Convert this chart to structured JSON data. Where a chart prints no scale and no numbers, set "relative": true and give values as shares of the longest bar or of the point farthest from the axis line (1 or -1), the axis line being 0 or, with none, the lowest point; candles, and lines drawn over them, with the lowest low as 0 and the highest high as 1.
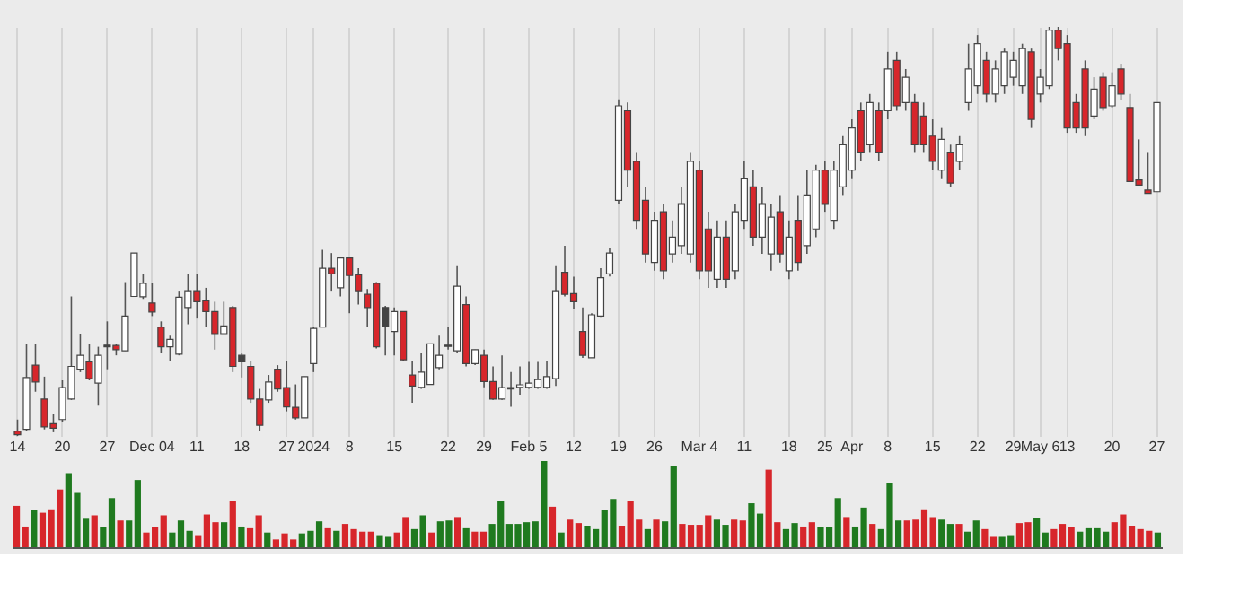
{
  "chart_data": [
    {
      "type": "candlestick",
      "relative": true,
      "grid": "x",
      "categories": [
        "14",
        null,
        null,
        null,
        null,
        "20",
        null,
        null,
        null,
        null,
        "27",
        null,
        null,
        null,
        null,
        "Dec 04",
        null,
        null,
        null,
        null,
        "11",
        null,
        null,
        null,
        null,
        "18",
        null,
        null,
        null,
        null,
        "27",
        null,
        null,
        "2024",
        null,
        null,
        null,
        "8",
        null,
        null,
        null,
        null,
        "15",
        null,
        null,
        null,
        null,
        null,
        "22",
        null,
        null,
        null,
        "29",
        null,
        null,
        null,
        null,
        "Feb 5",
        null,
        null,
        null,
        null,
        "12",
        null,
        null,
        null,
        null,
        "19",
        null,
        null,
        null,
        "26",
        null,
        null,
        null,
        null,
        "Mar 4",
        null,
        null,
        null,
        null,
        "11",
        null,
        null,
        null,
        null,
        "18",
        null,
        null,
        null,
        "25",
        null,
        null,
        "Apr",
        null,
        null,
        null,
        "8",
        null,
        null,
        null,
        null,
        "15",
        null,
        null,
        null,
        null,
        "22",
        null,
        null,
        null,
        "29",
        null,
        null,
        "May 6",
        null,
        null,
        "13",
        null,
        null,
        null,
        null,
        "20",
        null,
        null,
        null,
        null,
        "27"
      ],
      "ohlc": [
        [
          0.012,
          0.04,
          0,
          0.003
        ],
        [
          0.016,
          0.225,
          0.012,
          0.143
        ],
        [
          0.173,
          0.225,
          0.108,
          0.132
        ],
        [
          0.09,
          0.145,
          0.016,
          0.022
        ],
        [
          0.03,
          0.053,
          0.009,
          0.019
        ],
        [
          0.04,
          0.136,
          0.033,
          0.118
        ],
        [
          0.09,
          0.341,
          0.088,
          0.17
        ],
        [
          0.163,
          0.25,
          0.156,
          0.197
        ],
        [
          0.181,
          0.225,
          0.136,
          0.14
        ],
        [
          0.129,
          0.218,
          0.074,
          0.197
        ],
        [
          0.218,
          0.28,
          0.163,
          0.222
        ],
        [
          0.221,
          0.225,
          0.197,
          0.211
        ],
        [
          0.208,
          0.376,
          0.208,
          0.293
        ],
        [
          0.341,
          0.447,
          0.341,
          0.447
        ],
        [
          0.34,
          0.396,
          0.335,
          0.373
        ],
        [
          0.325,
          0.373,
          0.293,
          0.303
        ],
        [
          0.266,
          0.28,
          0.204,
          0.218
        ],
        [
          0.218,
          0.245,
          0.184,
          0.236
        ],
        [
          0.2,
          0.355,
          0.197,
          0.339
        ],
        [
          0.314,
          0.396,
          0.273,
          0.355
        ],
        [
          0.355,
          0.396,
          0.287,
          0.328
        ],
        [
          0.33,
          0.362,
          0.266,
          0.304
        ],
        [
          0.304,
          0.328,
          0.211,
          0.25
        ],
        [
          0.25,
          0.328,
          0.25,
          0.269
        ],
        [
          0.314,
          0.318,
          0.156,
          0.17
        ],
        [
          0.181,
          0.204,
          0.143,
          0.197
        ],
        [
          0.17,
          0.184,
          0.081,
          0.09
        ],
        [
          0.09,
          0.115,
          0.012,
          0.026
        ],
        [
          0.088,
          0.149,
          0.081,
          0.132
        ],
        [
          0.163,
          0.173,
          0.108,
          0.115
        ],
        [
          0.118,
          0.184,
          0.06,
          0.071
        ],
        [
          0.07,
          0.126,
          0.04,
          0.044
        ],
        [
          0.044,
          0.145,
          0.044,
          0.145
        ],
        [
          0.177,
          0.266,
          0.156,
          0.263
        ],
        [
          0.266,
          0.455,
          0.266,
          0.41
        ],
        [
          0.41,
          0.447,
          0.355,
          0.396
        ],
        [
          0.362,
          0.435,
          0.341,
          0.435
        ],
        [
          0.435,
          0.435,
          0.3,
          0.392
        ],
        [
          0.394,
          0.41,
          0.321,
          0.355
        ],
        [
          0.346,
          0.359,
          0.266,
          0.314
        ],
        [
          0.373,
          0.376,
          0.214,
          0.218
        ],
        [
          0.269,
          0.318,
          0.197,
          0.314
        ],
        [
          0.255,
          0.314,
          0.197,
          0.304
        ],
        [
          0.304,
          0.304,
          0.184,
          0.186
        ],
        [
          0.149,
          0.184,
          0.081,
          0.122
        ],
        [
          0.119,
          0.204,
          0.115,
          0.156
        ],
        [
          0.126,
          0.225,
          0.126,
          0.225
        ],
        [
          0.167,
          0.245,
          0.163,
          0.197
        ],
        [
          0.219,
          0.266,
          0.211,
          0.222
        ],
        [
          0.208,
          0.417,
          0.204,
          0.366
        ],
        [
          0.321,
          0.341,
          0.17,
          0.177
        ],
        [
          0.177,
          0.211,
          0.173,
          0.211
        ],
        [
          0.197,
          0.211,
          0.119,
          0.133
        ],
        [
          0.133,
          0.17,
          0.088,
          0.09
        ],
        [
          0.09,
          0.197,
          0.088,
          0.118
        ],
        [
          0.115,
          0.156,
          0.071,
          0.118
        ],
        [
          0.119,
          0.17,
          0.101,
          0.125
        ],
        [
          0.119,
          0.181,
          0.115,
          0.129
        ],
        [
          0.119,
          0.181,
          0.115,
          0.138
        ],
        [
          0.119,
          0.184,
          0.115,
          0.145
        ],
        [
          0.14,
          0.417,
          0.122,
          0.355
        ],
        [
          0.4,
          0.465,
          0.341,
          0.346
        ],
        [
          0.348,
          0.389,
          0.311,
          0.328
        ],
        [
          0.255,
          0.314,
          0.191,
          0.197
        ],
        [
          0.191,
          0.3,
          0.191,
          0.296
        ],
        [
          0.293,
          0.41,
          0.291,
          0.387
        ],
        [
          0.396,
          0.46,
          0.39,
          0.447
        ],
        [
          0.576,
          0.823,
          0.568,
          0.807
        ],
        [
          0.795,
          0.815,
          0.609,
          0.65
        ],
        [
          0.671,
          0.692,
          0.506,
          0.527
        ],
        [
          0.576,
          0.609,
          0.424,
          0.445
        ],
        [
          0.424,
          0.548,
          0.404,
          0.527
        ],
        [
          0.548,
          0.568,
          0.383,
          0.404
        ],
        [
          0.445,
          0.527,
          0.424,
          0.486
        ],
        [
          0.465,
          0.609,
          0.445,
          0.568
        ],
        [
          0.445,
          0.692,
          0.424,
          0.671
        ],
        [
          0.65,
          0.671,
          0.383,
          0.404
        ],
        [
          0.506,
          0.548,
          0.362,
          0.404
        ],
        [
          0.383,
          0.527,
          0.362,
          0.486
        ],
        [
          0.486,
          0.527,
          0.362,
          0.383
        ],
        [
          0.404,
          0.568,
          0.383,
          0.548
        ],
        [
          0.527,
          0.671,
          0.506,
          0.63
        ],
        [
          0.609,
          0.65,
          0.465,
          0.486
        ],
        [
          0.486,
          0.609,
          0.445,
          0.568
        ],
        [
          0.445,
          0.568,
          0.404,
          0.535
        ],
        [
          0.548,
          0.589,
          0.424,
          0.445
        ],
        [
          0.404,
          0.527,
          0.383,
          0.486
        ],
        [
          0.527,
          0.589,
          0.404,
          0.424
        ],
        [
          0.465,
          0.65,
          0.445,
          0.589
        ],
        [
          0.506,
          0.663,
          0.486,
          0.65
        ],
        [
          0.65,
          0.671,
          0.548,
          0.568
        ],
        [
          0.527,
          0.671,
          0.506,
          0.65
        ],
        [
          0.609,
          0.733,
          0.589,
          0.712
        ],
        [
          0.65,
          0.774,
          0.63,
          0.753
        ],
        [
          0.795,
          0.815,
          0.671,
          0.692
        ],
        [
          0.712,
          0.836,
          0.692,
          0.815
        ],
        [
          0.795,
          0.815,
          0.671,
          0.692
        ],
        [
          0.795,
          0.939,
          0.774,
          0.897
        ],
        [
          0.918,
          0.939,
          0.795,
          0.807
        ],
        [
          0.815,
          0.897,
          0.795,
          0.877
        ],
        [
          0.815,
          0.836,
          0.692,
          0.712
        ],
        [
          0.782,
          0.815,
          0.692,
          0.712
        ],
        [
          0.733,
          0.774,
          0.65,
          0.671
        ],
        [
          0.65,
          0.753,
          0.63,
          0.725
        ],
        [
          0.692,
          0.712,
          0.609,
          0.618
        ],
        [
          0.671,
          0.733,
          0.65,
          0.712
        ],
        [
          0.815,
          0.959,
          0.795,
          0.897
        ],
        [
          0.856,
          0.98,
          0.836,
          0.959
        ],
        [
          0.918,
          0.939,
          0.815,
          0.836
        ],
        [
          0.836,
          0.918,
          0.815,
          0.897
        ],
        [
          0.856,
          0.947,
          0.836,
          0.939
        ],
        [
          0.877,
          0.939,
          0.856,
          0.918
        ],
        [
          0.856,
          0.959,
          0.836,
          0.947
        ],
        [
          0.939,
          0.947,
          0.753,
          0.774
        ],
        [
          0.836,
          0.897,
          0.815,
          0.877
        ],
        [
          0.856,
          1,
          0.848,
          0.992
        ],
        [
          0.992,
          1,
          0.918,
          0.947
        ],
        [
          0.959,
          0.98,
          0.741,
          0.753
        ],
        [
          0.815,
          0.836,
          0.741,
          0.753
        ],
        [
          0.897,
          0.918,
          0.733,
          0.753
        ],
        [
          0.782,
          0.877,
          0.774,
          0.848
        ],
        [
          0.877,
          0.889,
          0.795,
          0.803
        ],
        [
          0.807,
          0.889,
          0.803,
          0.856
        ],
        [
          0.897,
          0.91,
          0.82,
          0.836
        ],
        [
          0.803,
          0.836,
          0.622,
          0.622
        ],
        [
          0.626,
          0.725,
          0.613,
          0.613
        ],
        [
          0.601,
          0.692,
          0.593,
          0.593
        ],
        [
          0.597,
          0.815,
          0.597,
          0.815
        ]
      ],
      "colors": [
        "#d7262b",
        "#ffffff",
        "#d7262b",
        "#d7262b",
        "#d7262b",
        "#ffffff",
        "#ffffff",
        "#ffffff",
        "#d7262b",
        "#ffffff",
        "#444444",
        "#d7262b",
        "#ffffff",
        "#ffffff",
        "#ffffff",
        "#d7262b",
        "#d7262b",
        "#ffffff",
        "#ffffff",
        "#ffffff",
        "#d7262b",
        "#d7262b",
        "#d7262b",
        "#ffffff",
        "#d7262b",
        "#444444",
        "#d7262b",
        "#d7262b",
        "#ffffff",
        "#d7262b",
        "#d7262b",
        "#d7262b",
        "#ffffff",
        "#ffffff",
        "#ffffff",
        "#d7262b",
        "#ffffff",
        "#d7262b",
        "#d7262b",
        "#d7262b",
        "#d7262b",
        "#444444",
        "#ffffff",
        "#d7262b",
        "#d7262b",
        "#ffffff",
        "#ffffff",
        "#ffffff",
        "#444444",
        "#ffffff",
        "#d7262b",
        "#ffffff",
        "#d7262b",
        "#d7262b",
        "#ffffff",
        "#444444",
        "#ffffff",
        "#ffffff",
        "#ffffff",
        "#ffffff",
        "#ffffff",
        "#d7262b",
        "#d7262b",
        "#d7262b",
        "#ffffff",
        "#ffffff",
        "#ffffff",
        "#ffffff",
        "#d7262b",
        "#d7262b",
        "#d7262b",
        "#ffffff",
        "#d7262b",
        "#ffffff",
        "#ffffff",
        "#ffffff",
        "#d7262b",
        "#d7262b",
        "#ffffff",
        "#d7262b",
        "#ffffff",
        "#ffffff",
        "#d7262b",
        "#ffffff",
        "#ffffff",
        "#d7262b",
        "#ffffff",
        "#d7262b",
        "#ffffff",
        "#ffffff",
        "#d7262b",
        "#ffffff",
        "#ffffff",
        "#ffffff",
        "#d7262b",
        "#ffffff",
        "#d7262b",
        "#ffffff",
        "#d7262b",
        "#ffffff",
        "#d7262b",
        "#d7262b",
        "#d7262b",
        "#ffffff",
        "#d7262b",
        "#ffffff",
        "#ffffff",
        "#ffffff",
        "#d7262b",
        "#ffffff",
        "#ffffff",
        "#ffffff",
        "#ffffff",
        "#d7262b",
        "#ffffff",
        "#ffffff",
        "#d7262b",
        "#d7262b",
        "#d7262b",
        "#d7262b",
        "#ffffff",
        "#d7262b",
        "#ffffff",
        "#d7262b",
        "#d7262b",
        "#d7262b",
        "#d7262b",
        "#ffffff"
      ]
    },
    {
      "type": "bar",
      "relative": true,
      "categories": [
        null,
        null,
        null,
        null,
        null,
        null,
        null,
        null,
        null,
        null,
        null,
        null,
        null,
        null,
        null,
        null,
        null,
        null,
        null,
        null,
        null,
        null,
        null,
        null,
        null,
        null,
        null,
        null,
        null,
        null,
        null,
        null,
        null,
        null,
        null,
        null,
        null,
        null,
        null,
        null,
        null,
        null,
        null,
        null,
        null,
        null,
        null,
        null,
        null,
        null,
        null,
        null,
        null,
        null,
        null,
        null,
        null,
        null,
        null,
        null,
        null,
        null,
        null,
        null,
        null,
        null,
        null,
        null,
        null,
        null,
        null,
        null,
        null,
        null,
        null,
        null,
        null,
        null,
        null,
        null,
        null,
        null,
        null,
        null,
        null,
        null,
        null,
        null,
        null,
        null,
        null,
        null,
        null,
        null,
        null,
        null,
        null,
        null,
        null,
        null,
        null,
        null,
        null,
        null,
        null,
        null,
        null,
        null,
        null,
        null,
        null,
        null,
        null,
        null,
        null,
        null,
        null,
        null,
        null,
        null,
        null,
        null,
        null,
        null,
        null,
        null,
        null,
        null,
        null,
        null,
        null,
        null,
        null
      ],
      "values": [
        0.48,
        0.24,
        0.43,
        0.4,
        0.44,
        0.67,
        0.86,
        0.63,
        0.33,
        0.37,
        0.23,
        0.57,
        0.31,
        0.31,
        0.78,
        0.17,
        0.23,
        0.37,
        0.17,
        0.31,
        0.19,
        0.14,
        0.38,
        0.29,
        0.29,
        0.54,
        0.24,
        0.22,
        0.37,
        0.17,
        0.09,
        0.16,
        0.09,
        0.16,
        0.19,
        0.3,
        0.22,
        0.19,
        0.27,
        0.21,
        0.18,
        0.18,
        0.14,
        0.12,
        0.17,
        0.35,
        0.21,
        0.37,
        0.17,
        0.3,
        0.31,
        0.35,
        0.22,
        0.18,
        0.18,
        0.27,
        0.54,
        0.27,
        0.27,
        0.29,
        0.3,
        1,
        0.47,
        0.17,
        0.32,
        0.28,
        0.25,
        0.21,
        0.43,
        0.56,
        0.25,
        0.54,
        0.32,
        0.21,
        0.32,
        0.3,
        0.94,
        0.27,
        0.26,
        0.26,
        0.37,
        0.32,
        0.26,
        0.32,
        0.31,
        0.51,
        0.39,
        0.9,
        0.29,
        0.21,
        0.28,
        0.24,
        0.29,
        0.23,
        0.23,
        0.57,
        0.35,
        0.24,
        0.46,
        0.27,
        0.21,
        0.74,
        0.31,
        0.31,
        0.32,
        0.44,
        0.35,
        0.32,
        0.27,
        0.27,
        0.18,
        0.31,
        0.21,
        0.12,
        0.12,
        0.14,
        0.28,
        0.29,
        0.34,
        0.17,
        0.21,
        0.27,
        0.23,
        0.18,
        0.22,
        0.22,
        0.18,
        0.29,
        0.38,
        0.25,
        0.21,
        0.19,
        0.17
      ],
      "colors": [
        "#d7262b",
        "#d7262b",
        "#1f7a1f",
        "#d7262b",
        "#d7262b",
        "#d7262b",
        "#1f7a1f",
        "#1f7a1f",
        "#1f7a1f",
        "#d7262b",
        "#1f7a1f",
        "#1f7a1f",
        "#d7262b",
        "#1f7a1f",
        "#1f7a1f",
        "#d7262b",
        "#d7262b",
        "#d7262b",
        "#1f7a1f",
        "#1f7a1f",
        "#1f7a1f",
        "#d7262b",
        "#d7262b",
        "#d7262b",
        "#1f7a1f",
        "#d7262b",
        "#1f7a1f",
        "#d7262b",
        "#d7262b",
        "#1f7a1f",
        "#d7262b",
        "#d7262b",
        "#d7262b",
        "#1f7a1f",
        "#1f7a1f",
        "#1f7a1f",
        "#d7262b",
        "#1f7a1f",
        "#d7262b",
        "#d7262b",
        "#d7262b",
        "#d7262b",
        "#1f7a1f",
        "#1f7a1f",
        "#d7262b",
        "#d7262b",
        "#1f7a1f",
        "#1f7a1f",
        "#d7262b",
        "#1f7a1f",
        "#1f7a1f",
        "#d7262b",
        "#1f7a1f",
        "#d7262b",
        "#d7262b",
        "#1f7a1f",
        "#1f7a1f",
        "#1f7a1f",
        "#1f7a1f",
        "#1f7a1f",
        "#1f7a1f",
        "#1f7a1f",
        "#d7262b",
        "#1f7a1f",
        "#d7262b",
        "#d7262b",
        "#1f7a1f",
        "#1f7a1f",
        "#1f7a1f",
        "#1f7a1f",
        "#d7262b",
        "#d7262b",
        "#d7262b",
        "#1f7a1f",
        "#d7262b",
        "#1f7a1f",
        "#1f7a1f",
        "#d7262b",
        "#d7262b",
        "#d7262b",
        "#d7262b",
        "#1f7a1f",
        "#1f7a1f",
        "#d7262b",
        "#d7262b",
        "#1f7a1f",
        "#1f7a1f",
        "#d7262b",
        "#d7262b",
        "#1f7a1f",
        "#1f7a1f",
        "#d7262b",
        "#d7262b",
        "#1f7a1f",
        "#1f7a1f",
        "#1f7a1f",
        "#d7262b",
        "#1f7a1f",
        "#1f7a1f",
        "#d7262b",
        "#1f7a1f",
        "#1f7a1f",
        "#1f7a1f",
        "#d7262b",
        "#d7262b",
        "#d7262b",
        "#d7262b",
        "#1f7a1f",
        "#1f7a1f",
        "#d7262b",
        "#1f7a1f",
        "#1f7a1f",
        "#d7262b",
        "#d7262b",
        "#1f7a1f",
        "#1f7a1f",
        "#d7262b",
        "#d7262b",
        "#1f7a1f",
        "#1f7a1f",
        "#d7262b",
        "#d7262b",
        "#d7262b",
        "#1f7a1f",
        "#1f7a1f",
        "#1f7a1f",
        "#1f7a1f",
        "#d7262b",
        "#d7262b",
        "#d7262b",
        "#d7262b",
        "#d7262b",
        "#1f7a1f"
      ]
    }
  ]
}
